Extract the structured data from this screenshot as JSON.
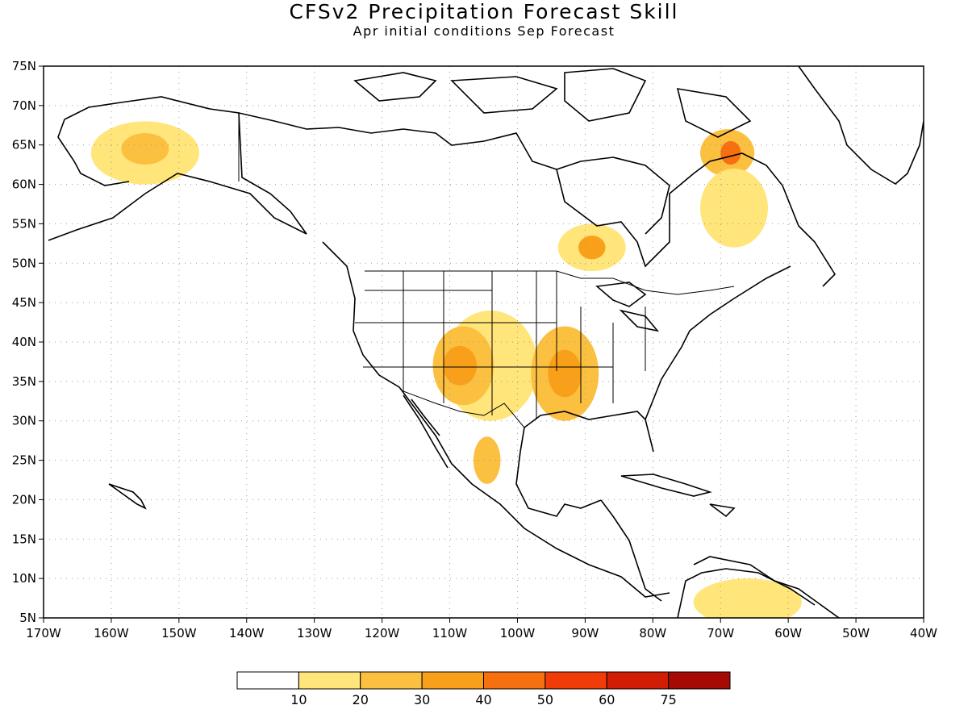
{
  "header": {
    "title": "CFSv2 Precipitation Forecast Skill",
    "subtitle": "Apr initial conditions  Sep Forecast"
  },
  "map": {
    "lon_range": [
      -170,
      -40
    ],
    "lat_range": [
      5,
      75
    ],
    "lat_ticks": [
      "75N",
      "70N",
      "65N",
      "60N",
      "55N",
      "50N",
      "45N",
      "40N",
      "35N",
      "30N",
      "25N",
      "20N",
      "15N",
      "10N",
      "5N"
    ],
    "lon_ticks": [
      "170W",
      "160W",
      "150W",
      "140W",
      "130W",
      "120W",
      "110W",
      "100W",
      "90W",
      "80W",
      "70W",
      "60W",
      "50W",
      "40W"
    ],
    "gridlines": true
  },
  "colorbar": {
    "labels": [
      "10",
      "20",
      "30",
      "40",
      "50",
      "60",
      "75"
    ],
    "colors": [
      "#ffffff",
      "#ffe57a",
      "#fcc040",
      "#f9a01b",
      "#f77010",
      "#f23c08",
      "#d21d05",
      "#a50a04"
    ]
  },
  "skill_regions": [
    {
      "lon": -155,
      "lat": 64,
      "rx": 8,
      "ry": 4,
      "level": 1
    },
    {
      "lon": -155,
      "lat": 64.5,
      "rx": 3.5,
      "ry": 2,
      "level": 2
    },
    {
      "lon": -104,
      "lat": 37,
      "rx": 7,
      "ry": 7,
      "level": 1
    },
    {
      "lon": -108,
      "lat": 37,
      "rx": 4.5,
      "ry": 5,
      "level": 2
    },
    {
      "lon": -108.5,
      "lat": 37,
      "rx": 2.5,
      "ry": 2.5,
      "level": 3
    },
    {
      "lon": -93,
      "lat": 36,
      "rx": 5,
      "ry": 6,
      "level": 2
    },
    {
      "lon": -93,
      "lat": 36,
      "rx": 2.5,
      "ry": 3,
      "level": 3
    },
    {
      "lon": -104.5,
      "lat": 25,
      "rx": 2,
      "ry": 3,
      "level": 2
    },
    {
      "lon": -89,
      "lat": 52,
      "rx": 5,
      "ry": 3,
      "level": 1
    },
    {
      "lon": -89,
      "lat": 52,
      "rx": 2,
      "ry": 1.5,
      "level": 3
    },
    {
      "lon": -69,
      "lat": 64,
      "rx": 4,
      "ry": 3,
      "level": 2
    },
    {
      "lon": -68.5,
      "lat": 64,
      "rx": 1.5,
      "ry": 1.5,
      "level": 4
    },
    {
      "lon": -68,
      "lat": 57,
      "rx": 5,
      "ry": 5,
      "level": 1
    },
    {
      "lon": -66,
      "lat": 7,
      "rx": 8,
      "ry": 3,
      "level": 1
    }
  ]
}
